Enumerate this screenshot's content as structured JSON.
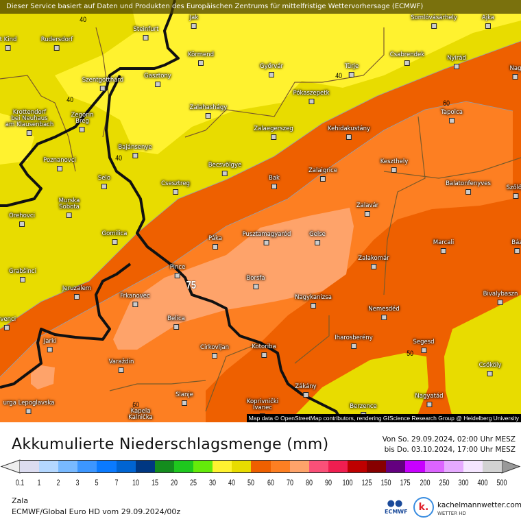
{
  "banner": "Dieser Service basiert auf Daten und Produkten des Europäischen Zentrums für mittelfristige Wettervorhersage (ECMWF)",
  "attribution": "Map data © OpenStreetMap contributors, rendering GIScience Research Group @ Heidelberg University",
  "map": {
    "zone_colors": {
      "30-40": "#fff22f",
      "40-50": "#e8dc00",
      "50-60": "#ee6000",
      "60-70": "#fd7f22",
      "70-80": "#fea36a"
    },
    "cities": [
      "Jak",
      "Somlóvásárhely",
      "Ajka",
      "Steinfurt",
      "t Kind",
      "Rudersdorf",
      "Körmend",
      "Győrvár",
      "Türje",
      "Csabrendek",
      "Nyirád",
      "Nag",
      "Gasztony",
      "Szentgotthárd",
      "Pókaszepetk",
      "Tapolca",
      "Zalahashágy",
      "Krottendorf\nbei Neuhaus\nam Klausenbach",
      "Zegorin\nBreg",
      "Zalaegerszeg",
      "Kehidakustány",
      "Bajánsenye",
      "Poznanovci",
      "Becsvölgye",
      "Keszthely",
      "Selo",
      "Zalaigrice",
      "Bak",
      "Csesztreg",
      "Balatonfenyves",
      "Szőlős",
      "Murska\nSobota",
      "Orehovci",
      "Zalavár",
      "Gomilica",
      "Páka",
      "Pusztamagyaród",
      "Gelse",
      "Marcali",
      "Báz",
      "Zalakomár",
      "Pince",
      "Grabšinci",
      "Borsfa",
      "Jeruzalem",
      "Frkanovec",
      "Nagykanizsa",
      "Bivalybaszn",
      "Nemesdéd",
      "rvenci",
      "Belica",
      "Jarki",
      "Iharosberény",
      "Segesd",
      "Cirkovljan",
      "Kotoriba",
      "Varaždin",
      "Csököly",
      "Zákány",
      "Slanje",
      "Nagyatád",
      "Berzence",
      "Koprivnički\nIvanec",
      "Kapela\nKalnička",
      "urga Lepoglavska"
    ],
    "contour_labels": [
      "40",
      "40",
      "40",
      "40",
      "60",
      "60",
      "50",
      "75"
    ]
  },
  "footer": {
    "title": "Akkumulierte Niederschlagsmenge (mm)",
    "date_from": "Von So. 29.09.2024, 02:00 Uhr MESZ",
    "date_to": "bis Do. 03.10.2024, 17:00 Uhr MESZ",
    "region": "Zala",
    "model": "ECMWF/Global Euro HD vom  29.09.2024/00z",
    "ecmwf_logo": "ECMWF",
    "brand": "kachelmannwetter.com",
    "brand_sub": "WETTER HD",
    "brand_logo_letter": "k."
  },
  "legend": {
    "ticks": [
      "0.1",
      "1",
      "2",
      "3",
      "5",
      "7",
      "10",
      "15",
      "20",
      "25",
      "30",
      "40",
      "50",
      "60",
      "70",
      "80",
      "90",
      "100",
      "125",
      "150",
      "175",
      "200",
      "250",
      "300",
      "400",
      "500"
    ],
    "colors": [
      "#dcdcf0",
      "#b4d7ff",
      "#78b9ff",
      "#3c96ff",
      "#0a7aff",
      "#0064d2",
      "#003782",
      "#148c1e",
      "#1ec81e",
      "#64eb0a",
      "#fff230",
      "#e8dc00",
      "#ee6000",
      "#fd7f22",
      "#fea36a",
      "#fa5078",
      "#f01e50",
      "#be0000",
      "#870000",
      "#64007f",
      "#c800ff",
      "#dc64ff",
      "#e6aaff",
      "#f5e6ff",
      "#d2d2d2"
    ],
    "below_color": "#eeeeee",
    "above_color": "#999999"
  }
}
